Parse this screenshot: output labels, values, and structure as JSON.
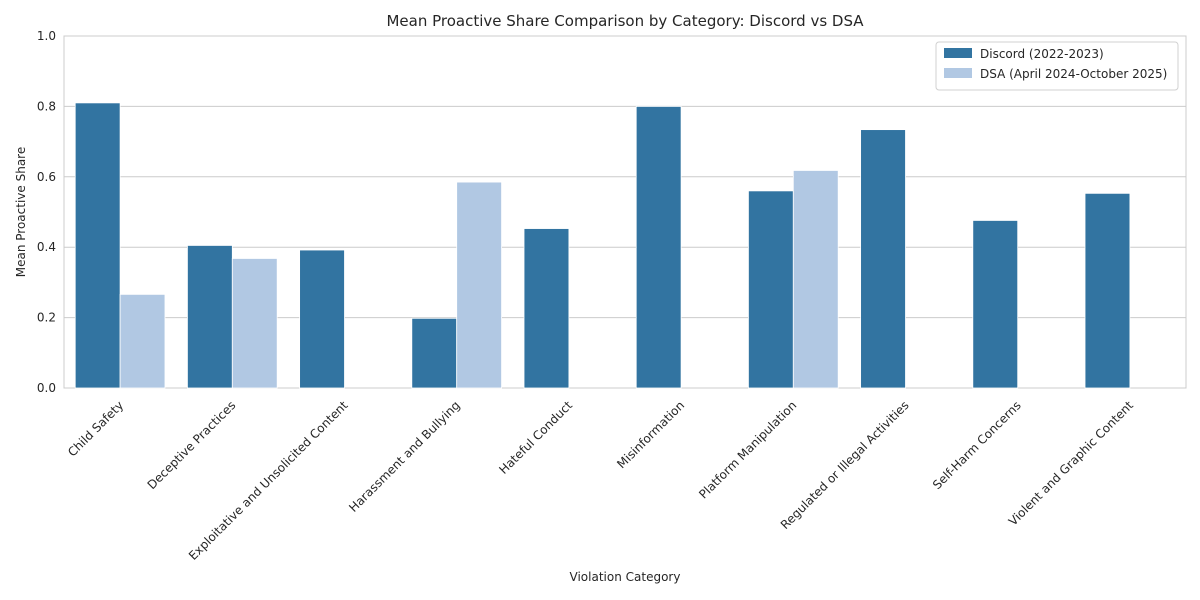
{
  "chart_data": {
    "type": "bar",
    "title": "Mean Proactive Share Comparison by Category: Discord vs DSA",
    "xlabel": "Violation Category",
    "ylabel": "Mean Proactive Share",
    "ylim": [
      0,
      1.0
    ],
    "yticks": [
      "0.0",
      "0.2",
      "0.4",
      "0.6",
      "0.8",
      "1.0"
    ],
    "grid": "horizontal",
    "legend_position": "top-right",
    "categories": [
      "Child Safety",
      "Deceptive Practices",
      "Exploitative and Unsolicited Content",
      "Harassment and Bullying",
      "Hateful Conduct",
      "Misinformation",
      "Platform Manipulation",
      "Regulated or Illegal Activities",
      "Self-Harm Concerns",
      "Violent and Graphic Content"
    ],
    "series": [
      {
        "name": "Discord (2022-2023)",
        "color": "#3274a1",
        "values": [
          0.81,
          0.405,
          0.392,
          0.198,
          0.453,
          0.8,
          0.56,
          0.734,
          0.476,
          0.553
        ]
      },
      {
        "name": "DSA (April 2024-October 2025)",
        "color": "#b1c8e3",
        "values": [
          0.266,
          0.368,
          null,
          0.585,
          null,
          null,
          0.618,
          null,
          null,
          null
        ]
      }
    ]
  }
}
